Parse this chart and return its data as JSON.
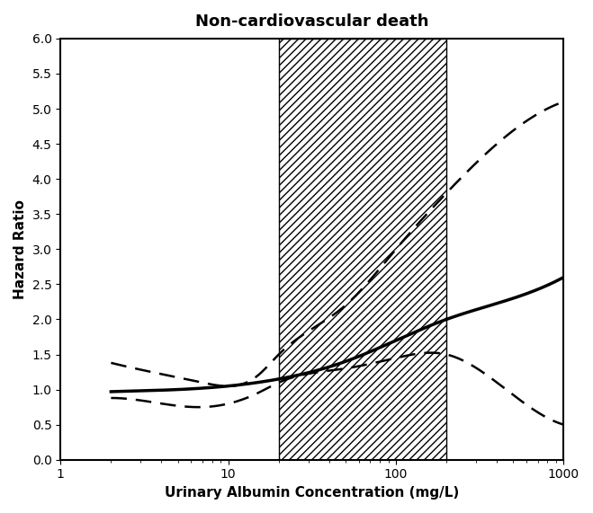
{
  "title": "Non-cardiovascular death",
  "xlabel": "Urinary Albumin Concentration (mg/L)",
  "ylabel": "Hazard Ratio",
  "xlim": [
    1,
    1000
  ],
  "ylim": [
    0.0,
    6.0
  ],
  "yticks": [
    0.0,
    0.5,
    1.0,
    1.5,
    2.0,
    2.5,
    3.0,
    3.5,
    4.0,
    4.5,
    5.0,
    5.5,
    6.0
  ],
  "hatch_xmin": 20,
  "hatch_xmax": 200,
  "background_color": "#ffffff",
  "line_color": "#000000",
  "title_fontsize": 13,
  "axis_label_fontsize": 11,
  "figsize": [
    6.59,
    5.71
  ],
  "dpi": 100,
  "solid_knots_x": [
    2,
    5,
    10,
    20,
    50,
    100,
    200,
    500,
    1000
  ],
  "solid_knots_y": [
    0.97,
    1.0,
    1.05,
    1.15,
    1.4,
    1.7,
    2.0,
    2.3,
    2.6
  ],
  "upper_knots_x": [
    2,
    4,
    7,
    15,
    20,
    50,
    100,
    200,
    400,
    1000
  ],
  "upper_knots_y": [
    1.38,
    1.22,
    1.1,
    1.2,
    1.5,
    2.2,
    3.0,
    3.8,
    4.5,
    5.1
  ],
  "lower_knots_x": [
    2,
    4,
    7,
    15,
    20,
    50,
    100,
    200,
    400,
    1000
  ],
  "lower_knots_y": [
    0.88,
    0.8,
    0.75,
    0.95,
    1.1,
    1.3,
    1.45,
    1.5,
    1.1,
    0.5
  ]
}
